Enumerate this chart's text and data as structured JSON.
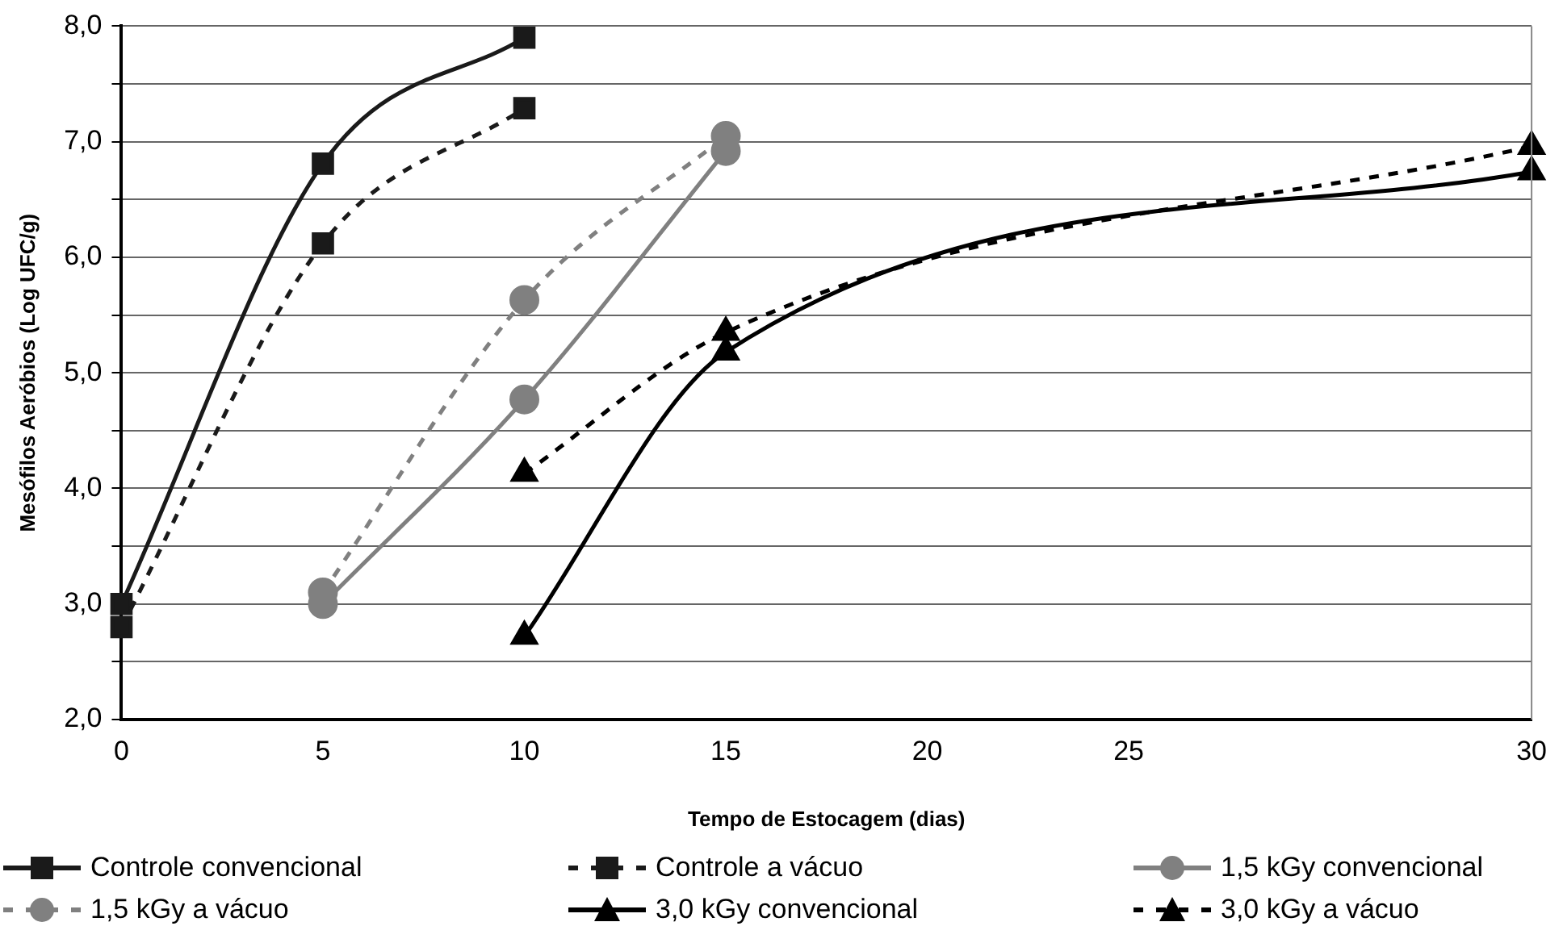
{
  "chart_data": {
    "type": "line",
    "xlabel": "Tempo de Estocagem (dias)",
    "ylabel": "Mesófilos Aeróbios (Log UFC/g)",
    "categories": [
      "0",
      "5",
      "10",
      "15",
      "20",
      "25",
      null,
      "30"
    ],
    "series": [
      {
        "name": "Controle convencional",
        "color": "#1a1a1a",
        "marker": "square",
        "line_style": "solid",
        "values": [
          3.0,
          6.81,
          7.9,
          null,
          null,
          null,
          null,
          null
        ]
      },
      {
        "name": "Controle a vácuo",
        "color": "#1a1a1a",
        "marker": "square",
        "line_style": "dashed",
        "values": [
          2.8,
          6.12,
          7.29,
          null,
          null,
          null,
          null,
          null
        ]
      },
      {
        "name": "1,5 kGy convencional",
        "color": "#808080",
        "marker": "circle",
        "line_style": "solid",
        "values": [
          null,
          3.0,
          4.77,
          6.92,
          null,
          null,
          null,
          null
        ]
      },
      {
        "name": "1,5 kGy a vácuo",
        "color": "#808080",
        "marker": "circle",
        "line_style": "dashed",
        "values": [
          null,
          3.1,
          5.63,
          7.05,
          null,
          null,
          null,
          null
        ]
      },
      {
        "name": "3,0 kGy convencional",
        "color": "#000000",
        "marker": "triangle",
        "line_style": "solid",
        "values": [
          null,
          null,
          2.72,
          5.18,
          null,
          null,
          null,
          6.74
        ]
      },
      {
        "name": "3,0 kGy a vácuo",
        "color": "#000000",
        "marker": "triangle",
        "line_style": "dashed",
        "values": [
          null,
          null,
          4.13,
          5.35,
          null,
          null,
          null,
          6.96
        ]
      }
    ],
    "ylim": [
      2,
      8
    ],
    "yticks": [
      {
        "value": 2,
        "label": "2,0"
      },
      {
        "value": 2.5,
        "label": null
      },
      {
        "value": 3,
        "label": "3,0"
      },
      {
        "value": 3.5,
        "label": null
      },
      {
        "value": 4,
        "label": "4,0"
      },
      {
        "value": 4.5,
        "label": null
      },
      {
        "value": 5,
        "label": "5,0"
      },
      {
        "value": 5.5,
        "label": null
      },
      {
        "value": 6,
        "label": "6,0"
      },
      {
        "value": 6.5,
        "label": null
      },
      {
        "value": 7,
        "label": "7,0"
      },
      {
        "value": 7.5,
        "label": null
      },
      {
        "value": 8,
        "label": "8,0"
      }
    ],
    "grid": "y",
    "legend": "bottom"
  }
}
